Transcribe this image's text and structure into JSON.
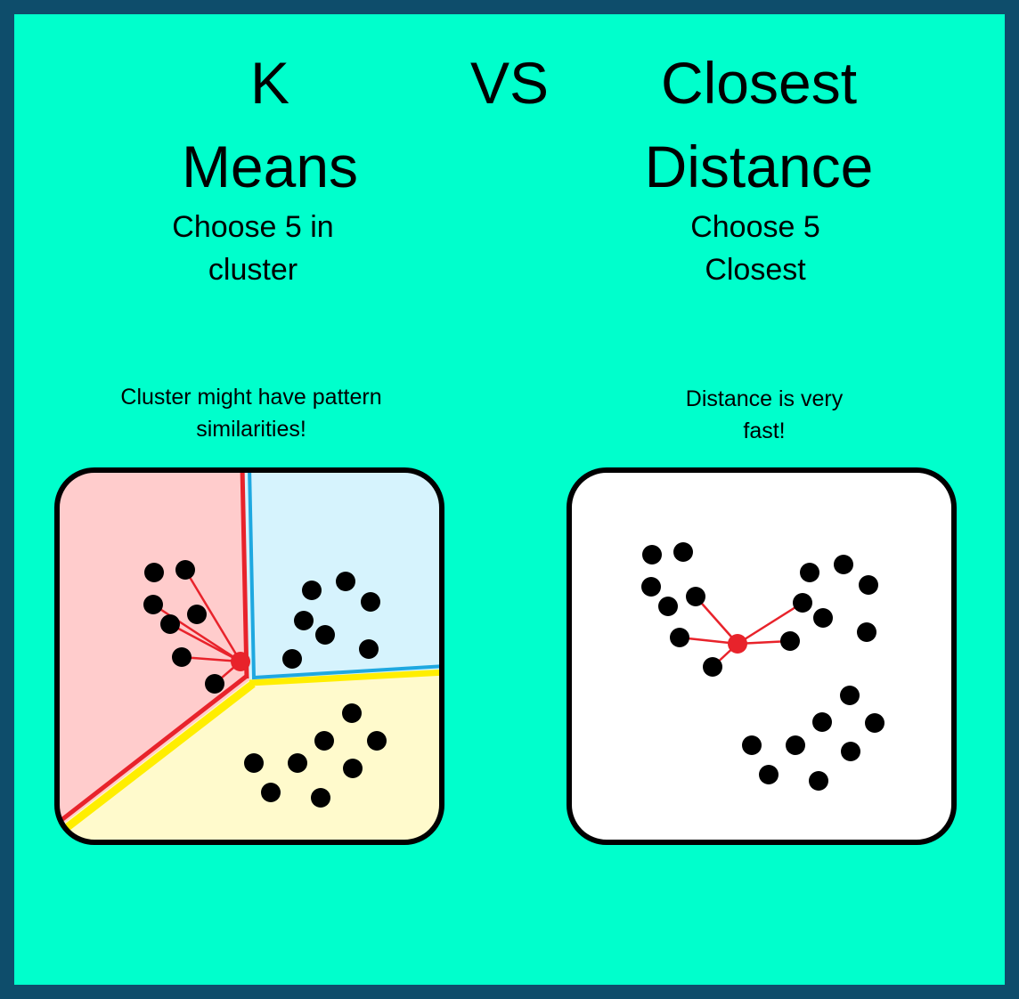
{
  "title": {
    "left_line1": "K",
    "left_line2": "Means",
    "vs": "VS",
    "right_line1": "Closest",
    "right_line2": "Distance"
  },
  "subtitle": {
    "left_line1": "Choose 5 in",
    "left_line2": "cluster",
    "right_line1": "Choose 5",
    "right_line2": "Closest"
  },
  "note": {
    "left_line1": "Cluster might have pattern",
    "left_line2": "similarities!",
    "right_line1": "Distance is very",
    "right_line2": "fast!"
  },
  "colors": {
    "background": "#00ffcc",
    "border": "#0e4d6b",
    "region_red": "#ffcccc",
    "region_blue": "#d6f3fd",
    "region_yellow": "#fffacc",
    "boundary_red": "#e8232b",
    "boundary_blue": "#1fa8e0",
    "boundary_yellow": "#ffee00",
    "point": "#000000",
    "query_point": "#e8232b"
  },
  "icons": {
    "data_point": "black-dot",
    "query_point": "red-dot"
  }
}
